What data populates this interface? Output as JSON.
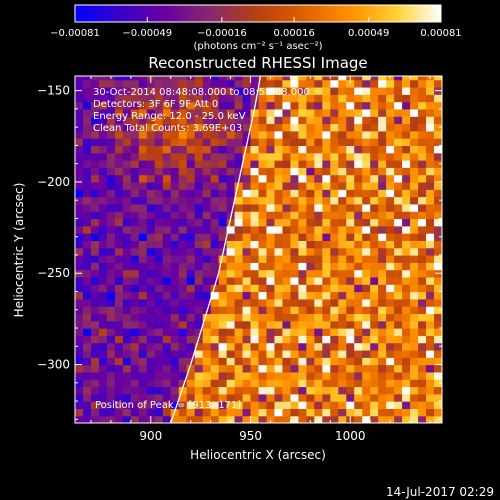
{
  "chart_data": {
    "type": "heatmap",
    "title": "Reconstructed RHESSI Image",
    "xlabel": "Heliocentric X (arcsec)",
    "ylabel": "Heliocentric Y (arcsec)",
    "xlim": [
      862,
      1046
    ],
    "ylim": [
      -332,
      -142
    ],
    "x_ticks": [
      900,
      950,
      1000
    ],
    "y_ticks": [
      -150,
      -200,
      -250,
      -300
    ],
    "x_tick_labels": [
      "900",
      "950",
      "1000"
    ],
    "y_tick_labels": [
      "−150",
      "−200",
      "−250",
      "−300"
    ],
    "colorbar": {
      "range": [
        -0.00081,
        0.00081
      ],
      "ticks": [
        -0.00081,
        -0.00049,
        -0.00016,
        0.00016,
        0.00049,
        0.00081
      ],
      "tick_labels": [
        "−0.00081",
        "−0.00049",
        "−0.00016",
        "0.00016",
        "0.00049",
        "0.00081"
      ],
      "units_label": "(photons cm⁻² s⁻¹ asec⁻²)"
    },
    "annotations": [
      "30-Oct-2014 08:48:08.000 to 08:58:08.000",
      "Detectors: 3F 6F 9F  Att 0",
      "Energy Range: 12.0 - 25.0 keV",
      "Clean     Total Counts: 3.69E+03"
    ],
    "peak_label": "Position of Peak = [913,-171]",
    "peak": [
      913,
      -171
    ],
    "limb": [
      [
        910,
        -332
      ],
      [
        920,
        -300
      ],
      [
        934,
        -250
      ],
      [
        944,
        -200
      ],
      [
        952,
        -160
      ],
      [
        955,
        -142
      ]
    ],
    "colormap": [
      "#0000ff",
      "#3a00c8",
      "#6a00a0",
      "#8a2a6a",
      "#b84010",
      "#e06000",
      "#ff9000",
      "#ffcf30",
      "#ffffff"
    ]
  },
  "footer": {
    "date_stamp": "14-Jul-2017 02:29"
  }
}
